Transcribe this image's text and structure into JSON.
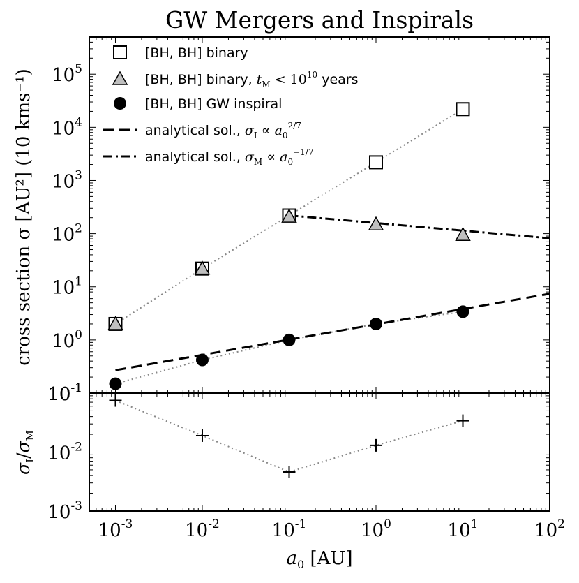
{
  "chart_data": [
    {
      "type": "scatter",
      "title": "GW Mergers and Inspirals",
      "xlabel": "a0 [AU]",
      "ylabel": "cross section σ [AU²] (10 kms⁻¹)",
      "x_scale": "log",
      "y_scale": "log",
      "xlim": [
        0.0005,
        100
      ],
      "ylim": [
        0.1,
        500000
      ],
      "x_ticks": [
        0.001,
        0.01,
        0.1,
        1,
        10,
        100
      ],
      "y_ticks": [
        0.1,
        1,
        10,
        100,
        1000,
        10000,
        100000
      ],
      "legend_position": "upper-left",
      "series": [
        {
          "name": "[BH, BH] binary",
          "marker": "open-square",
          "line": "dotted",
          "x": [
            0.001,
            0.01,
            0.1,
            1,
            10
          ],
          "y": [
            2,
            22,
            220,
            2200,
            22000
          ]
        },
        {
          "name": "[BH, BH] binary, tM < 10^10 years",
          "marker": "gray-triangle",
          "line": "none",
          "x": [
            0.001,
            0.01,
            0.1,
            1,
            10
          ],
          "y": [
            2,
            22,
            210,
            150,
            95
          ]
        },
        {
          "name": "[BH, BH] GW inspiral",
          "marker": "filled-circle",
          "line": "dotted",
          "x": [
            0.001,
            0.01,
            0.1,
            1,
            10
          ],
          "y": [
            0.15,
            0.42,
            1.0,
            2.0,
            3.4
          ]
        },
        {
          "name": "analytical sol., σI ∝ a0^(2/7)",
          "marker": "none",
          "line": "dashed",
          "x": [
            0.001,
            100
          ],
          "y": [
            0.27,
            7.4
          ]
        },
        {
          "name": "analytical sol., σM ∝ a0^(−1/7)",
          "marker": "none",
          "line": "dash-dot",
          "x": [
            0.1,
            100
          ],
          "y": [
            220,
            82
          ]
        }
      ],
      "legend": {
        "entries": [
          {
            "text": "[BH, BH] binary"
          },
          {
            "pre": "[BH, BH] binary, ",
            "math": "t",
            "sub": "M",
            "mid": " < 10",
            "sup": "10",
            "post": " years"
          },
          {
            "text": "[BH, BH] GW inspiral"
          },
          {
            "pre": "analytical sol., ",
            "math": "σ",
            "sub": "I",
            "mid": " ∝ a",
            "sub2": "0",
            "sup": "2/7"
          },
          {
            "pre": "analytical sol., ",
            "math": "σ",
            "sub": "M",
            "mid": " ∝ a",
            "sub2": "0",
            "sup": "−1/7"
          }
        ]
      }
    },
    {
      "type": "scatter",
      "ylabel": "σI/σM",
      "x_scale": "log",
      "y_scale": "log",
      "xlim": [
        0.0005,
        100
      ],
      "ylim": [
        0.001,
        0.1
      ],
      "y_ticks": [
        0.001,
        0.01,
        0.1
      ],
      "series": [
        {
          "marker": "plus",
          "line": "dotted",
          "x": [
            0.001,
            0.01,
            0.1,
            1,
            10
          ],
          "y": [
            0.075,
            0.019,
            0.0046,
            0.013,
            0.034
          ]
        }
      ]
    }
  ],
  "text": {
    "title": "GW Mergers and Inspirals",
    "ylabel_main": "cross section σ [AU²] (10 kms⁻¹)",
    "ylabel_ratio": {
      "a": "σ",
      "a_sub": "I",
      "slash": "/",
      "b": "σ",
      "b_sub": "M"
    },
    "xlabel": {
      "var": "a",
      "var_sub": "0",
      "unit": " [AU]"
    }
  }
}
